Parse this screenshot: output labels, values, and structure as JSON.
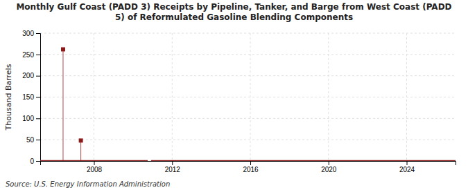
{
  "chart_data": {
    "type": "line",
    "title": "Monthly Gulf Coast (PADD 3) Receipts by Pipeline, Tanker, and Barge from West Coast (PADD 5) of Reformulated Gasoline Blending Components",
    "y_label": "Thousand Barrels",
    "source": "Source: U.S. Energy Information Administration",
    "xlim": [
      2005.25,
      2026.5
    ],
    "xticks": [
      2008,
      2012,
      2016,
      2020,
      2024
    ],
    "ylim": [
      0,
      300
    ],
    "yticks": [
      0,
      50,
      100,
      150,
      200,
      250,
      300
    ],
    "grid": true,
    "series": [
      {
        "type": "line",
        "color": "#8b1a1a",
        "x": [
          2005.25,
          2010.75
        ],
        "values": [
          0,
          0
        ]
      },
      {
        "type": "line",
        "color": "#8b1a1a",
        "x": [
          2010.92,
          2026.5
        ],
        "values": [
          0,
          0
        ]
      },
      {
        "type": "scatter",
        "marker": "square",
        "color": "#8b1a1a",
        "x": [
          2006.42,
          2007.33
        ],
        "values": [
          262,
          48
        ]
      }
    ]
  }
}
